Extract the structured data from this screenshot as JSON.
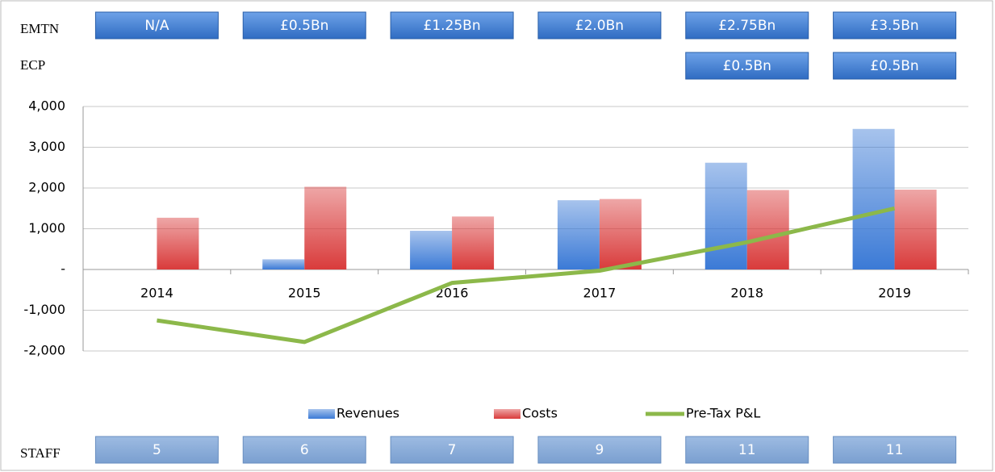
{
  "rows": {
    "emtn": {
      "label": "EMTN",
      "values": [
        "N/A",
        "£0.5Bn",
        "£1.25Bn",
        "£2.0Bn",
        "£2.75Bn",
        "£3.5Bn"
      ]
    },
    "ecp": {
      "label": "ECP",
      "values": [
        null,
        null,
        null,
        null,
        "£0.5Bn",
        "£0.5Bn"
      ]
    },
    "staff": {
      "label": "STAFF",
      "values": [
        5,
        6,
        7,
        9,
        11,
        11
      ]
    }
  },
  "chart_data": {
    "type": "bar",
    "categories": [
      "2014",
      "2015",
      "2016",
      "2017",
      "2018",
      "2019"
    ],
    "series": [
      {
        "name": "Revenues",
        "color": "#3b7ad6",
        "values": [
          0,
          250,
          950,
          1700,
          2620,
          3450
        ]
      },
      {
        "name": "Costs",
        "color": "#d93b3b",
        "values": [
          1270,
          2030,
          1300,
          1730,
          1950,
          1960
        ]
      },
      {
        "name": "Pre-Tax P&L",
        "type": "line",
        "color": "#8cb84a",
        "values": [
          -1250,
          -1780,
          -330,
          -30,
          670,
          1500
        ]
      }
    ],
    "ylim": [
      -2000,
      4000
    ],
    "yticks": [
      {
        "value": -2000,
        "label": "-2,000"
      },
      {
        "value": -1000,
        "label": "-1,000"
      },
      {
        "value": 0,
        "label": "-"
      },
      {
        "value": 1000,
        "label": "1,000"
      },
      {
        "value": 2000,
        "label": "2,000"
      },
      {
        "value": 3000,
        "label": "3,000"
      },
      {
        "value": 4000,
        "label": "4,000"
      }
    ],
    "grid": true,
    "legend": "bottom"
  }
}
